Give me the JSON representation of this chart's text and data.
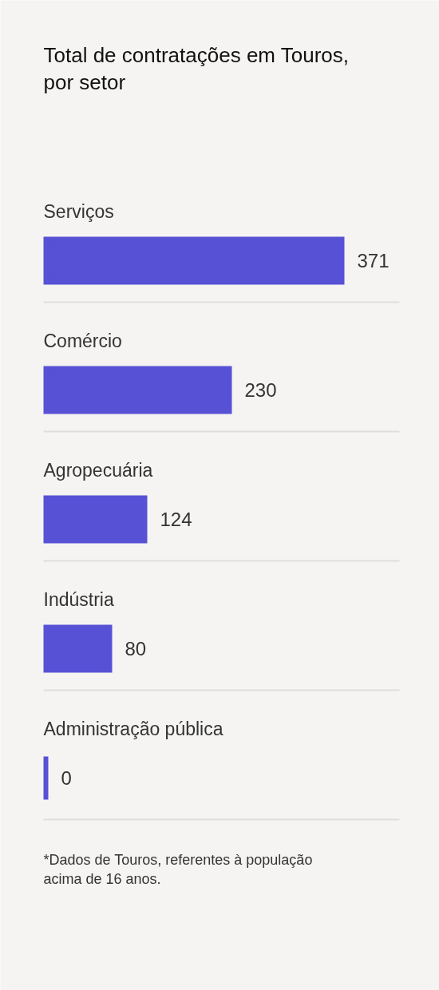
{
  "chart_data": {
    "type": "bar",
    "orientation": "horizontal",
    "title": "Total de contratações em Touros, por setor",
    "categories": [
      "Serviços",
      "Comércio",
      "Agropecuária",
      "Indústria",
      "Administração pública"
    ],
    "values": [
      371,
      230,
      124,
      80,
      0
    ],
    "color": "#5751d5",
    "data_labels": true,
    "grid": "y",
    "annotations": [
      "*Dados de Touros, referentes à população acima de 16 anos."
    ]
  }
}
